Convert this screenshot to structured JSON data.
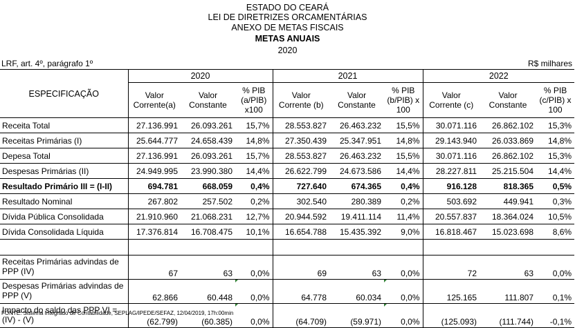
{
  "header": {
    "line1": "ESTADO DO CEARÁ",
    "line2": "LEI DE DIRETRIZES ORCAMENTÁRIAS",
    "line3": "ANEXO DE METAS FISCAIS",
    "line4": "METAS ANUAIS",
    "line5": "2020"
  },
  "meta": {
    "left": "LRF, art. 4º, parágrafo 1º",
    "right": "R$ milhares"
  },
  "table": {
    "spec_header": "ESPECIFICAÇÃO",
    "years": [
      "2020",
      "2021",
      "2022"
    ],
    "col_headers": [
      "Valor Corrente(a)",
      "Valor Constante",
      "% PIB (a/PIB) x100",
      "Valor Corrente (b)",
      "Valor Constante",
      "% PIB (b/PIB) x 100",
      "Valor Corrente (c)",
      "Valor Constante",
      "% PIB (c/PIB) x 100"
    ],
    "rows": [
      {
        "label": "Receita Total",
        "values": [
          "27.136.991",
          "26.093.261",
          "15,7%",
          "28.553.827",
          "26.463.232",
          "15,5%",
          "30.071.116",
          "26.862.102",
          "15,3%"
        ]
      },
      {
        "label": "Receitas Primárias (I)",
        "values": [
          "25.644.777",
          "24.658.439",
          "14,8%",
          "27.350.439",
          "25.347.951",
          "14,8%",
          "29.143.940",
          "26.033.869",
          "14,8%"
        ]
      },
      {
        "label": "Depesa Total",
        "values": [
          "27.136.991",
          "26.093.261",
          "15,7%",
          "28.553.827",
          "26.463.232",
          "15,5%",
          "30.071.116",
          "26.862.102",
          "15,3%"
        ]
      },
      {
        "label": "Despesas Primárias (II)",
        "values": [
          "24.949.995",
          "23.990.380",
          "14,4%",
          "26.622.799",
          "24.673.586",
          "14,4%",
          "28.227.811",
          "25.215.504",
          "14,4%"
        ]
      },
      {
        "label": "Resultado Primário III = (I-II)",
        "values": [
          "694.781",
          "668.059",
          "0,4%",
          "727.640",
          "674.365",
          "0,4%",
          "916.128",
          "818.365",
          "0,5%"
        ]
      },
      {
        "label": "Resultado Nominal",
        "values": [
          "267.802",
          "257.502",
          "0,2%",
          "302.540",
          "280.389",
          "0,2%",
          "503.692",
          "449.941",
          "0,3%"
        ]
      },
      {
        "label": "Dívida Pública Consolidada",
        "values": [
          "21.910.960",
          "21.068.231",
          "12,7%",
          "20.944.592",
          "19.411.114",
          "11,4%",
          "20.557.837",
          "18.364.024",
          "10,5%"
        ]
      },
      {
        "label": "Dívida Consolidada Líquida",
        "values": [
          "17.376.814",
          "16.708.475",
          "10,1%",
          "16.654.788",
          "15.435.392",
          "9,0%",
          "16.818.467",
          "15.023.698",
          "8,6%"
        ]
      }
    ],
    "ppp_rows": [
      {
        "label": "Receitas Primárias advindas de PPP (IV)",
        "values": [
          "67",
          "63",
          "0,0%",
          "69",
          "63",
          "0,0%",
          "72",
          "63",
          "0,0%"
        ]
      },
      {
        "label": "Despesas Primárias advindas de PPP (V)",
        "values": [
          "62.866",
          "60.448",
          "0,0%",
          "64.778",
          "60.034",
          "0,0%",
          "125.165",
          "111.807",
          "0,1%"
        ]
      },
      {
        "label": "Impacto do saldo das PPP VI = (IV) - (V)",
        "values": [
          "(62.799)",
          "(60.385)",
          "0,0%",
          "(64.709)",
          "(59.971)",
          "0,0%",
          "(125.093)",
          "(111.744)",
          "-0,1%"
        ]
      }
    ]
  },
  "source": "FONTE: Sistema Integrado de Contabilidade, SEPLAG/IPEDE/SEFAZ, 12/04/2019, 17h:00min"
}
